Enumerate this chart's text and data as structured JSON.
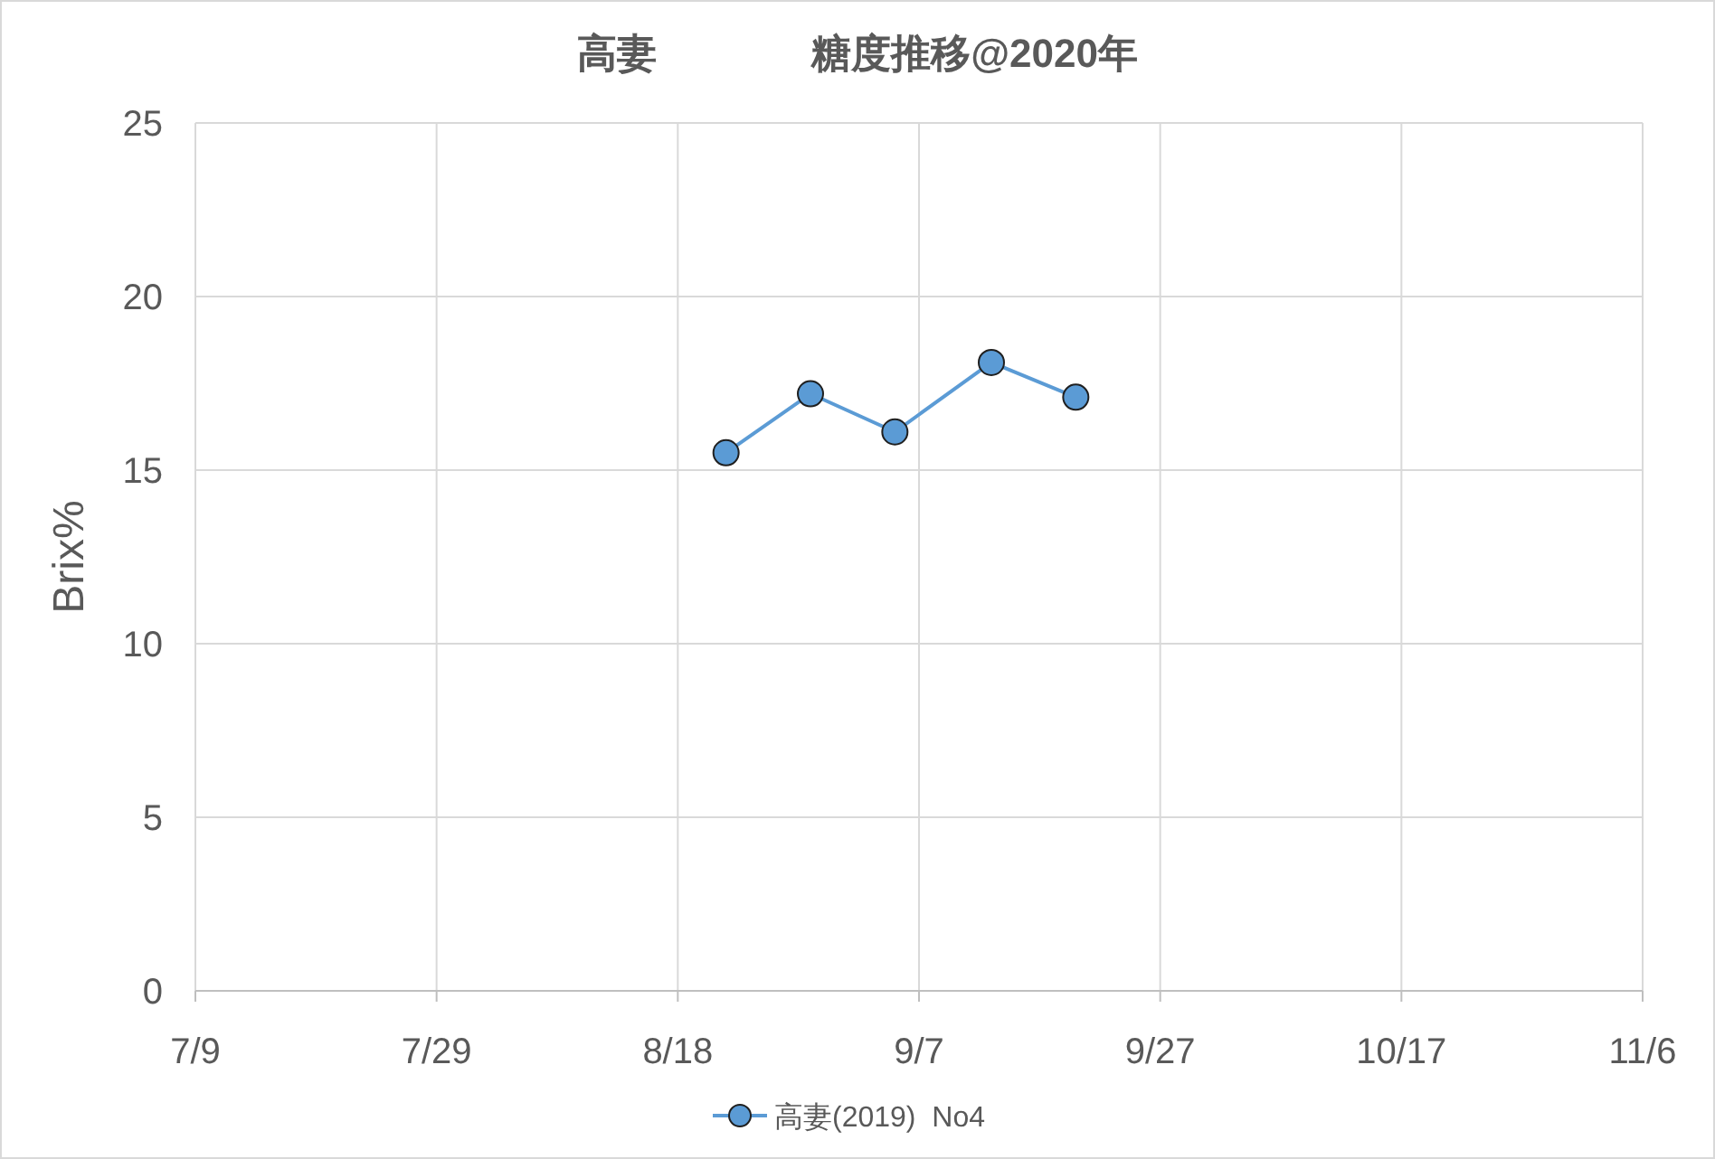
{
  "chart_data": {
    "type": "line",
    "title": "高妻              糖度推移@2020年",
    "ylabel": "Brix%",
    "x": [
      "2020-08-22",
      "2020-08-29",
      "2020-09-05",
      "2020-09-13",
      "2020-09-20"
    ],
    "series": [
      {
        "name": "高妻(2019)  No4",
        "color": "#5b9bd5",
        "values": [
          15.5,
          17.2,
          16.1,
          18.1,
          17.1
        ]
      }
    ],
    "xlim": [
      "2020-07-09",
      "2020-11-06"
    ],
    "xticks": [
      {
        "value": "2020-07-09",
        "label": "7/9"
      },
      {
        "value": "2020-07-29",
        "label": "7/29"
      },
      {
        "value": "2020-08-18",
        "label": "8/18"
      },
      {
        "value": "2020-09-07",
        "label": "9/7"
      },
      {
        "value": "2020-09-27",
        "label": "9/27"
      },
      {
        "value": "2020-10-17",
        "label": "10/17"
      },
      {
        "value": "2020-11-06",
        "label": "11/6"
      }
    ],
    "ylim": [
      0,
      25
    ],
    "yticks": [
      0,
      5,
      10,
      15,
      20,
      25
    ],
    "grid": true,
    "legend": "bottom",
    "marker": "circle",
    "line_style": "solid"
  }
}
